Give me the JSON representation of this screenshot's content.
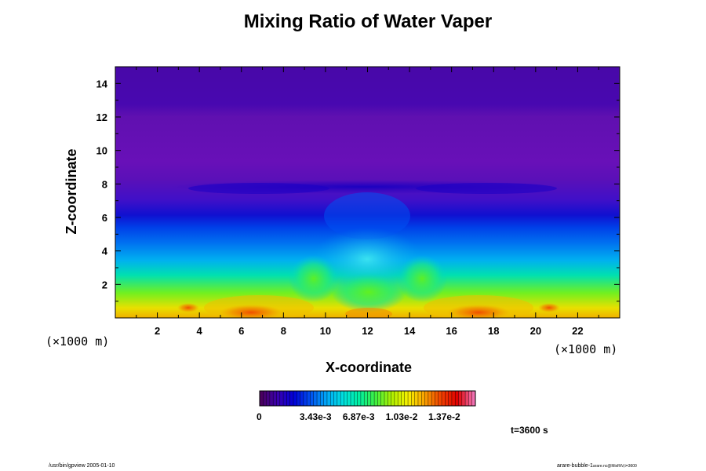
{
  "chart_data": {
    "type": "heatmap",
    "title": "Mixing Ratio of Water Vaper",
    "xlabel": "X-coordinate",
    "ylabel": "Z-coordinate",
    "x_unit": "(×1000 m)",
    "z_unit": "(×1000 m)",
    "xlim": [
      0,
      24
    ],
    "ylim": [
      0,
      15
    ],
    "x_ticks": [
      "2",
      "4",
      "6",
      "8",
      "10",
      "12",
      "14",
      "16",
      "18",
      "20",
      "22"
    ],
    "y_ticks": [
      "2",
      "4",
      "6",
      "8",
      "10",
      "12",
      "14"
    ],
    "colorbar": {
      "min": 0,
      "max": 0.0172,
      "labels": [
        "0",
        "3.43e-3",
        "6.87e-3",
        "1.03e-2",
        "1.37e-2"
      ],
      "colors": [
        "#4a0060",
        "#3a00b0",
        "#0000d8",
        "#0050f0",
        "#00a8f8",
        "#00e0e0",
        "#00f0a0",
        "#40f040",
        "#b0f000",
        "#f8f000",
        "#f8a000",
        "#f04000",
        "#e00000",
        "#f070b0"
      ]
    },
    "field_description": "mixing ratio is largest near the surface and decreases with height; moist plumes near x=9.5 and x=14.5"
  },
  "time_label": "t=3600 s",
  "footer": {
    "left": "/usr/bin/gpview 2005-01-10",
    "right": "arare-bubble-1",
    "right_tail": "arare.nc@MixRtV,t=3600"
  }
}
